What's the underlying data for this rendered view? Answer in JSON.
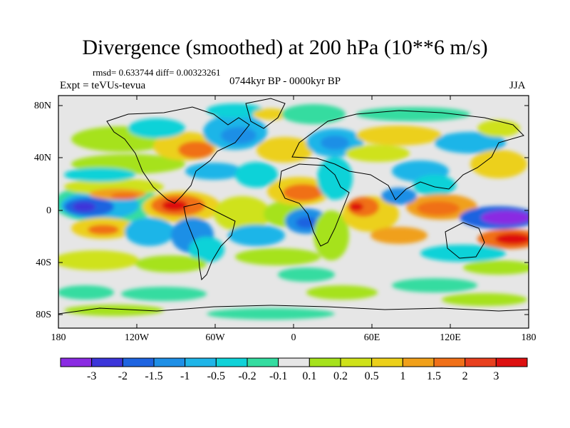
{
  "title": "Divergence (smoothed) at 200 hPa (10**6 m/s)",
  "stats": "rmsd= 0.633744 diff= 0.00323261",
  "experiment": "Expt = teVUs-tevua",
  "period": "0744kyr BP - 0000kyr BP",
  "season": "JJA",
  "lat_labels": [
    "80N",
    "40N",
    "0",
    "40S",
    "80S"
  ],
  "lon_labels": [
    "180",
    "120W",
    "60W",
    "0",
    "60E",
    "120E",
    "180"
  ],
  "colorbar": {
    "colors": [
      "#8a2be2",
      "#3c35d9",
      "#1e64e0",
      "#1e8fe6",
      "#1fb5e8",
      "#10d2d8",
      "#34dca0",
      "#e6e6e6",
      "#a6e21c",
      "#cfe21a",
      "#ecd01a",
      "#f0a01a",
      "#f07018",
      "#e8401e",
      "#dd1010"
    ],
    "labels": [
      "-3",
      "-2",
      "-1.5",
      "-1",
      "-0.5",
      "-0.2",
      "-0.1",
      "0.1",
      "0.2",
      "0.5",
      "1",
      "1.5",
      "2",
      "3"
    ]
  }
}
